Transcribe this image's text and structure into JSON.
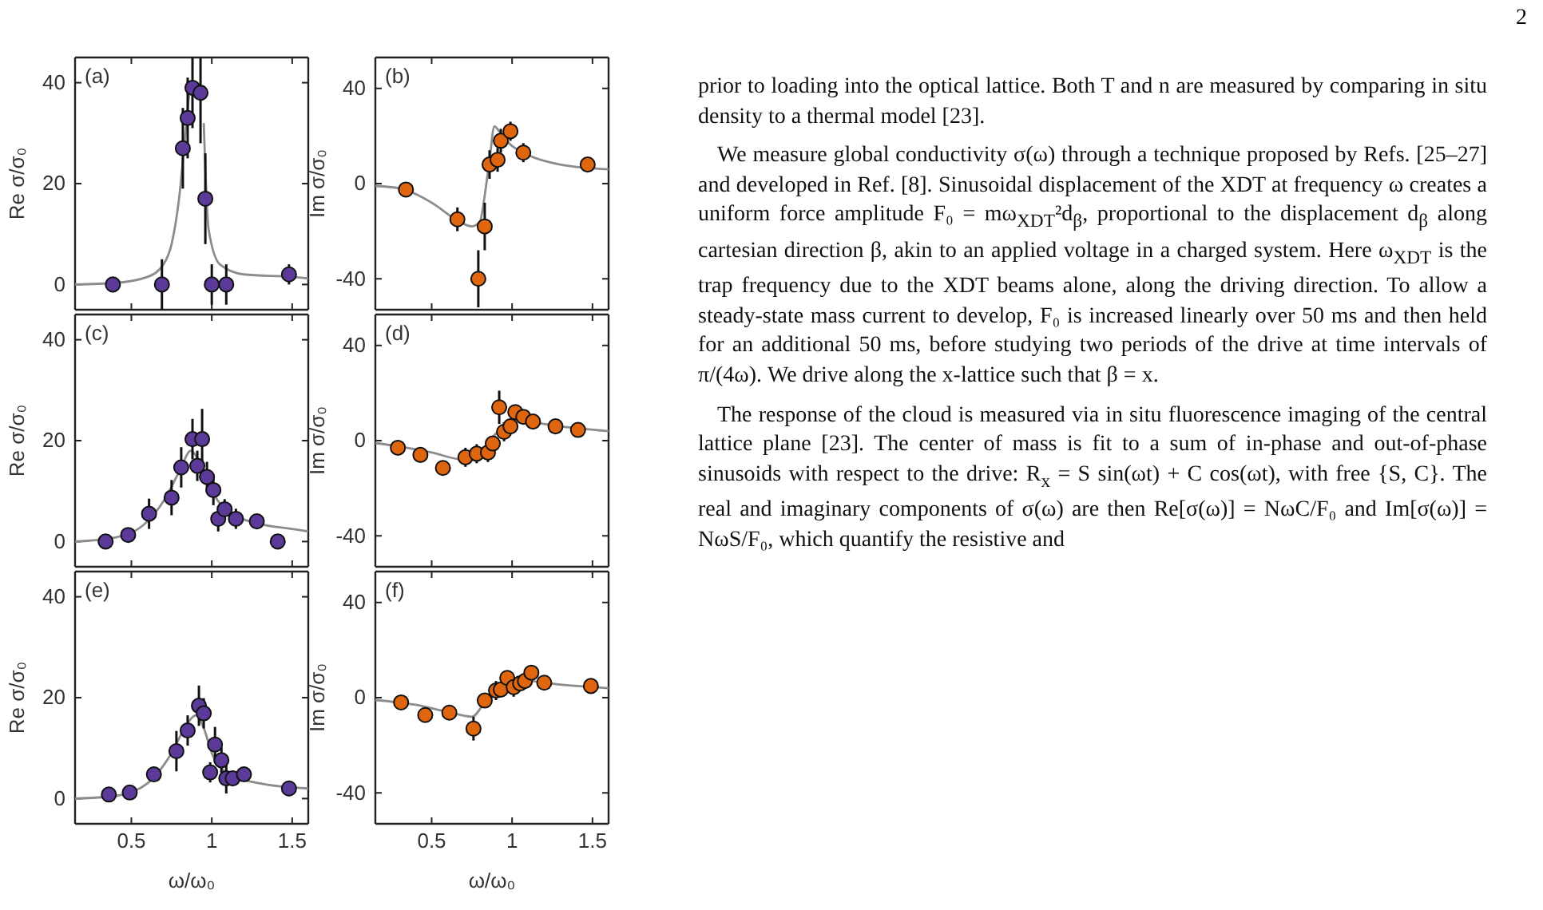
{
  "chart_data": [
    {
      "type": "scatter",
      "ylabel": "Re σ/σ₀",
      "annotations": [
        "(a)"
      ],
      "xlim": [
        0.15,
        1.6
      ],
      "xticks": [
        0.5,
        1,
        1.5
      ],
      "ylim": [
        -5,
        45
      ],
      "yticks": [
        0,
        20,
        40
      ],
      "tick_labels": "y",
      "series": [
        {
          "type": "scatter",
          "marker": "circle",
          "color": "#5b3a9a",
          "x": [
            0.385,
            0.69,
            0.82,
            0.85,
            0.88,
            0.93,
            0.96,
            1.0,
            1.09,
            1.48
          ],
          "values": [
            0,
            0,
            27,
            33,
            39,
            38,
            17,
            0,
            0,
            2
          ],
          "errors": [
            null,
            5,
            8,
            8,
            8,
            10,
            9,
            4,
            4,
            2
          ]
        },
        {
          "type": "line",
          "color": "#8c8c8c",
          "x": [
            0.15,
            0.4,
            0.6,
            0.7,
            0.75,
            0.8,
            0.83,
            0.86,
            0.88,
            0.93,
            0.95,
            0.98,
            1.05,
            1.2,
            1.5,
            1.6
          ],
          "values": [
            0,
            0.3,
            1.5,
            4,
            8,
            18,
            28,
            38,
            null,
            null,
            32,
            11,
            4,
            2,
            1.5,
            1.2
          ]
        }
      ]
    },
    {
      "type": "scatter",
      "ylabel": "Im σ/σ₀",
      "annotations": [
        "(b)"
      ],
      "xlim": [
        0.15,
        1.6
      ],
      "xticks": [
        0.5,
        1,
        1.5
      ],
      "ylim": [
        -53,
        53
      ],
      "yticks": [
        -40,
        0,
        40
      ],
      "tick_labels": "y",
      "series": [
        {
          "type": "scatter",
          "marker": "circle",
          "color": "#e0650f",
          "x": [
            0.34,
            0.66,
            0.83,
            0.79,
            0.86,
            0.91,
            0.93,
            0.99,
            1.07,
            1.47
          ],
          "values": [
            -2.5,
            -15,
            -18,
            -40,
            8,
            10,
            18,
            22,
            13,
            8
          ],
          "errors": [
            null,
            5,
            10,
            12,
            6,
            5,
            5,
            4,
            4,
            null
          ]
        },
        {
          "type": "line",
          "color": "#8c8c8c",
          "x": [
            0.15,
            0.3,
            0.5,
            0.65,
            0.75,
            0.8,
            0.83,
            0.86,
            0.89,
            0.92,
            0.98,
            1.1,
            1.3,
            1.6
          ],
          "values": [
            -1,
            -2,
            -8,
            -15,
            -18,
            -16,
            -5,
            10,
            24,
            22,
            17,
            12,
            8,
            6
          ]
        }
      ]
    },
    {
      "type": "scatter",
      "ylabel": "Re σ/σ₀",
      "annotations": [
        "(c)"
      ],
      "xlim": [
        0.15,
        1.6
      ],
      "xticks": [
        0.5,
        1,
        1.5
      ],
      "ylim": [
        -5,
        45
      ],
      "yticks": [
        0,
        20,
        40
      ],
      "tick_labels": "y",
      "series": [
        {
          "type": "scatter",
          "marker": "circle",
          "color": "#5b3a9a",
          "x": [
            0.34,
            0.48,
            0.61,
            0.75,
            0.81,
            0.88,
            0.91,
            0.94,
            0.97,
            1.01,
            1.04,
            1.08,
            1.15,
            1.28,
            1.41
          ],
          "values": [
            0,
            1.3,
            5.5,
            8.7,
            14.7,
            20.3,
            15,
            20.3,
            12.8,
            10.2,
            4.5,
            6.4,
            4.5,
            4,
            0
          ],
          "errors": [
            null,
            null,
            3,
            3.5,
            4,
            4,
            3,
            6,
            3,
            3,
            2.5,
            2,
            2,
            null,
            null
          ]
        },
        {
          "type": "line",
          "color": "#8c8c8c",
          "x": [
            0.15,
            0.4,
            0.6,
            0.7,
            0.8,
            0.87,
            0.92,
            1.0,
            1.1,
            1.3,
            1.5,
            1.6
          ],
          "values": [
            0,
            0.8,
            4,
            8,
            14,
            18,
            16,
            10,
            6,
            3.5,
            2.5,
            2
          ]
        }
      ]
    },
    {
      "type": "scatter",
      "ylabel": "Im σ/σ₀",
      "annotations": [
        "(d)"
      ],
      "xlim": [
        0.15,
        1.6
      ],
      "xticks": [
        0.5,
        1,
        1.5
      ],
      "ylim": [
        -53,
        53
      ],
      "yticks": [
        -40,
        0,
        40
      ],
      "tick_labels": "y",
      "series": [
        {
          "type": "scatter",
          "marker": "circle",
          "color": "#e0650f",
          "x": [
            0.29,
            0.43,
            0.57,
            0.71,
            0.78,
            0.85,
            0.88,
            0.92,
            0.95,
            0.99,
            1.02,
            1.07,
            1.13,
            1.27,
            1.41
          ],
          "values": [
            -3,
            -6,
            -11.5,
            -7,
            -5.5,
            -5,
            -1.2,
            14,
            3.7,
            6,
            12,
            10,
            8,
            6,
            4.5
          ],
          "errors": [
            null,
            null,
            null,
            4,
            4,
            4,
            3,
            7,
            4,
            3,
            null,
            null,
            null,
            null,
            null
          ]
        },
        {
          "type": "line",
          "color": "#8c8c8c",
          "x": [
            0.15,
            0.3,
            0.5,
            0.7,
            0.8,
            0.9,
            1.0,
            1.1,
            1.3,
            1.6
          ],
          "values": [
            -1,
            -2.5,
            -5,
            -8,
            -5,
            3,
            9,
            8,
            6,
            4
          ]
        }
      ]
    },
    {
      "type": "scatter",
      "ylabel": "Re σ/σ₀",
      "xlabel": "ω/ω₀",
      "annotations": [
        "(e)"
      ],
      "xlim": [
        0.15,
        1.6
      ],
      "xticks": [
        0.5,
        1,
        1.5
      ],
      "ylim": [
        -5,
        45
      ],
      "yticks": [
        0,
        20,
        40
      ],
      "series": [
        {
          "type": "scatter",
          "marker": "circle",
          "color": "#5b3a9a",
          "x": [
            0.36,
            0.49,
            0.64,
            0.78,
            0.85,
            0.92,
            0.95,
            0.99,
            1.02,
            1.06,
            1.09,
            1.13,
            1.2,
            1.48
          ],
          "values": [
            0.8,
            1.2,
            4.8,
            9.4,
            13.5,
            18.4,
            16.9,
            5.2,
            10.7,
            7.6,
            4,
            4,
            4.8,
            2
          ],
          "errors": [
            null,
            null,
            1.5,
            4,
            3,
            4,
            3,
            2,
            3.5,
            2.5,
            3,
            null,
            null,
            1.5
          ]
        },
        {
          "type": "line",
          "color": "#8c8c8c",
          "x": [
            0.15,
            0.4,
            0.6,
            0.75,
            0.85,
            0.9,
            0.95,
            1.0,
            1.1,
            1.3,
            1.6
          ],
          "values": [
            0,
            0.5,
            3,
            9,
            15,
            16.5,
            14,
            9,
            5,
            3,
            2
          ]
        }
      ]
    },
    {
      "type": "scatter",
      "ylabel": "Im σ/σ₀",
      "xlabel": "ω/ω₀",
      "annotations": [
        "(f)"
      ],
      "xlim": [
        0.15,
        1.6
      ],
      "xticks": [
        0.5,
        1,
        1.5
      ],
      "ylim": [
        -53,
        53
      ],
      "yticks": [
        -40,
        0,
        40
      ],
      "series": [
        {
          "type": "scatter",
          "marker": "circle",
          "color": "#e0650f",
          "x": [
            0.31,
            0.46,
            0.61,
            0.76,
            0.83,
            0.9,
            0.93,
            0.97,
            1.01,
            1.05,
            1.08,
            1.12,
            1.2,
            1.49
          ],
          "values": [
            -2,
            -7.3,
            -6.3,
            -13,
            -1.2,
            3,
            3.4,
            8.3,
            4.4,
            6,
            7,
            10.5,
            6.3,
            4.9
          ],
          "errors": [
            null,
            null,
            null,
            5,
            null,
            4,
            null,
            null,
            4,
            null,
            null,
            null,
            null,
            null
          ]
        },
        {
          "type": "line",
          "color": "#8c8c8c",
          "x": [
            0.15,
            0.4,
            0.6,
            0.75,
            0.85,
            0.95,
            1.1,
            1.3,
            1.6
          ],
          "values": [
            -1,
            -3,
            -6,
            -8,
            0,
            5,
            7,
            5.5,
            4
          ]
        }
      ]
    },
    {
      "type": "other",
      "annotations": [
        "2",
        "prior to loading into the optical lattice. Both T and n are measured by comparing in situ density to a thermal model [23].",
        "We measure global conductivity σ(ω) through a technique proposed by Refs. [25–27] and developed in Ref. [8]. Sinusoidal displacement of the XDT at frequency ω creates a uniform force amplitude F₀ = mω$_{XDT}$²d$_{β}$, proportional to the displacement d$_{β}$ along cartesian direction β, akin to an applied voltage in a charged system. Here ω$_{XDT}$ is the trap frequency due to the XDT beams alone, along the driving direction. To allow a steady-state mass current to develop, F₀ is increased linearly over 50 ms and then held for an additional 50 ms, before studying two periods of the drive at time intervals of π/(4ω). We drive along the x-lattice such that β = x.",
        "The response of the cloud is measured via in situ fluorescence imaging of the central lattice plane [23]. The center of mass is fit to a sum of in-phase and out-of-phase sinusoids with respect to the drive: R$_{x}$ = S sin(ωt) + C cos(ωt), with free {S, C}. The real and imaginary components of σ(ω) are then Re[σ(ω)] = NωC/F₀ and Im[σ(ω)] = NωS/F₀, which quantify the resistive and"
      ]
    }
  ]
}
